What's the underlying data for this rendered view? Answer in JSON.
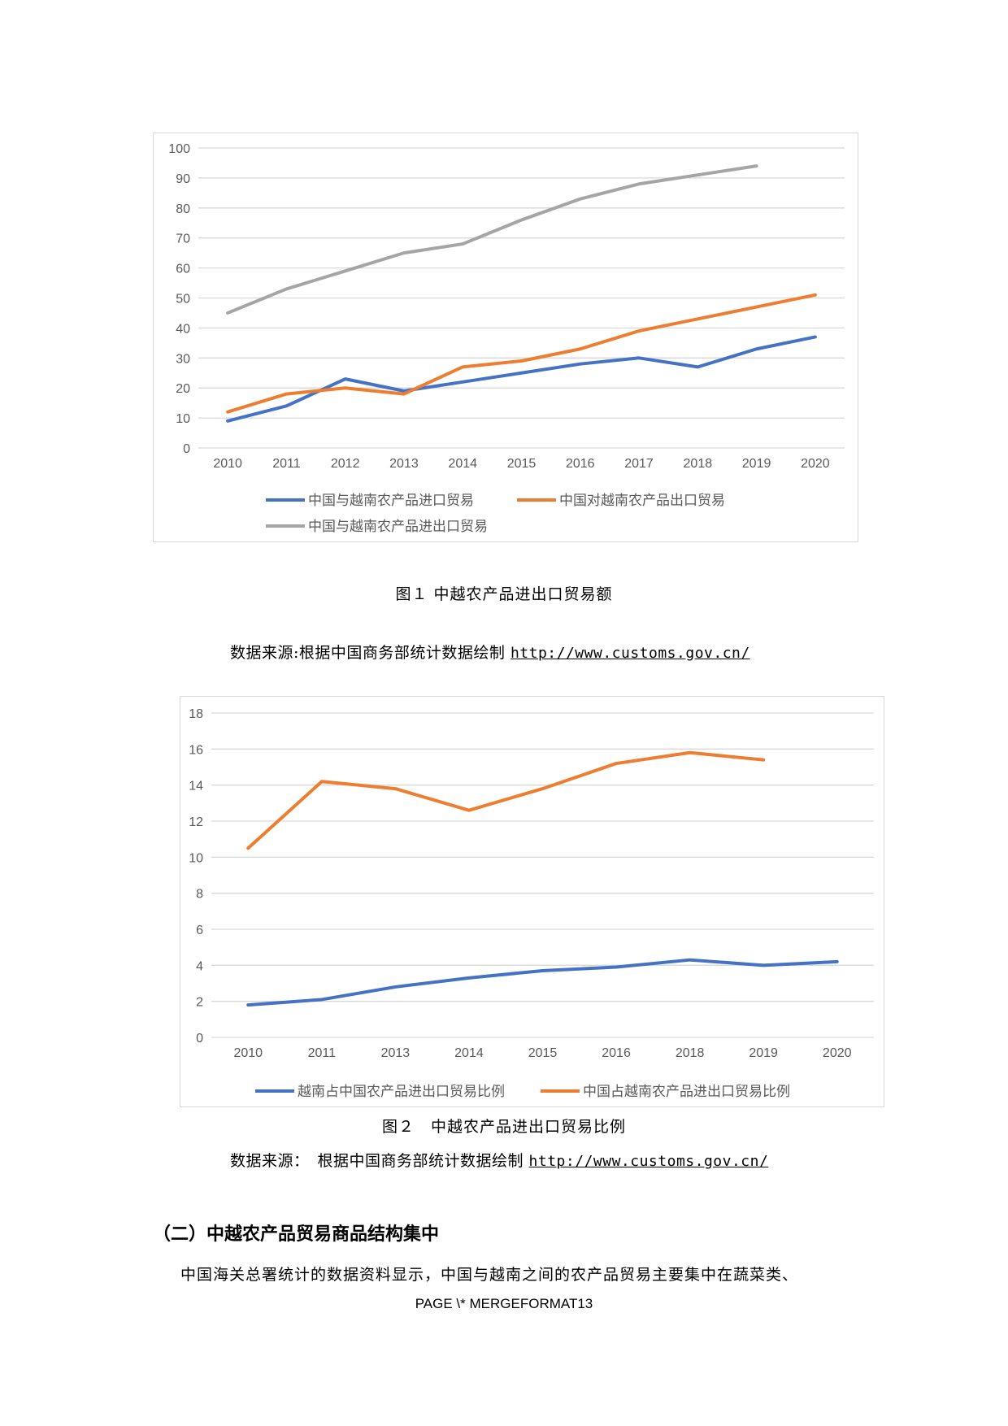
{
  "chart_data": [
    {
      "type": "line",
      "title": "",
      "xlabel": "",
      "ylabel": "",
      "categories": [
        "2010",
        "2011",
        "2012",
        "2013",
        "2014",
        "2015",
        "2016",
        "2017",
        "2018",
        "2019",
        "2020"
      ],
      "ylim": [
        0,
        100
      ],
      "yticks": [
        0,
        10,
        20,
        30,
        40,
        50,
        60,
        70,
        80,
        90,
        100
      ],
      "grid": true,
      "legend_position": "bottom",
      "series": [
        {
          "name": "中国与越南农产品进口贸易",
          "color": "#4472c4",
          "values": [
            9,
            14,
            23,
            19,
            22,
            25,
            28,
            30,
            27,
            33,
            37
          ]
        },
        {
          "name": "中国对越南农产品出口贸易",
          "color": "#ed7d31",
          "values": [
            12,
            18,
            20,
            18,
            27,
            29,
            33,
            39,
            43,
            47,
            51
          ]
        },
        {
          "name": "中国与越南农产品进出口贸易",
          "color": "#a5a5a5",
          "values": [
            45,
            53,
            59,
            65,
            68,
            76,
            83,
            88,
            91,
            94,
            null
          ]
        }
      ]
    },
    {
      "type": "line",
      "title": "",
      "xlabel": "",
      "ylabel": "",
      "categories": [
        "2010",
        "2011",
        "2013",
        "2014",
        "2015",
        "2016",
        "2018",
        "2019",
        "2020"
      ],
      "ylim": [
        0,
        18
      ],
      "yticks": [
        0,
        2,
        4,
        6,
        8,
        10,
        12,
        14,
        16,
        18
      ],
      "grid": true,
      "legend_position": "bottom",
      "series": [
        {
          "name": "越南占中国农产品进出口贸易比例",
          "color": "#4472c4",
          "values": [
            1.8,
            2.1,
            2.8,
            3.3,
            3.7,
            3.9,
            4.3,
            4.0,
            4.2
          ]
        },
        {
          "name": "中国占越南农产品进出口贸易比例",
          "color": "#ed7d31",
          "values": [
            10.5,
            14.2,
            13.8,
            12.6,
            13.8,
            15.2,
            15.8,
            15.4,
            null
          ]
        }
      ]
    }
  ],
  "figure1": {
    "caption": "图１ 中越农产品进出口贸易额",
    "source_prefix": "数据来源:根据中国商务部统计数据绘制 ",
    "source_link": "http://www.customs.gov.cn/"
  },
  "figure2": {
    "caption": "图２　中越农产品进出口贸易比例",
    "source_prefix": "数据来源：　根据中国商务部统计数据绘制 ",
    "source_link": "http://www.customs.gov.cn/"
  },
  "section": {
    "heading": "（二）中越农产品贸易商品结构集中",
    "paragraph": "中国海关总署统计的数据资料显示，中国与越南之间的农产品贸易主要集中在蔬菜类、"
  },
  "footer": {
    "text": "PAGE   \\* MERGEFORMAT13"
  }
}
